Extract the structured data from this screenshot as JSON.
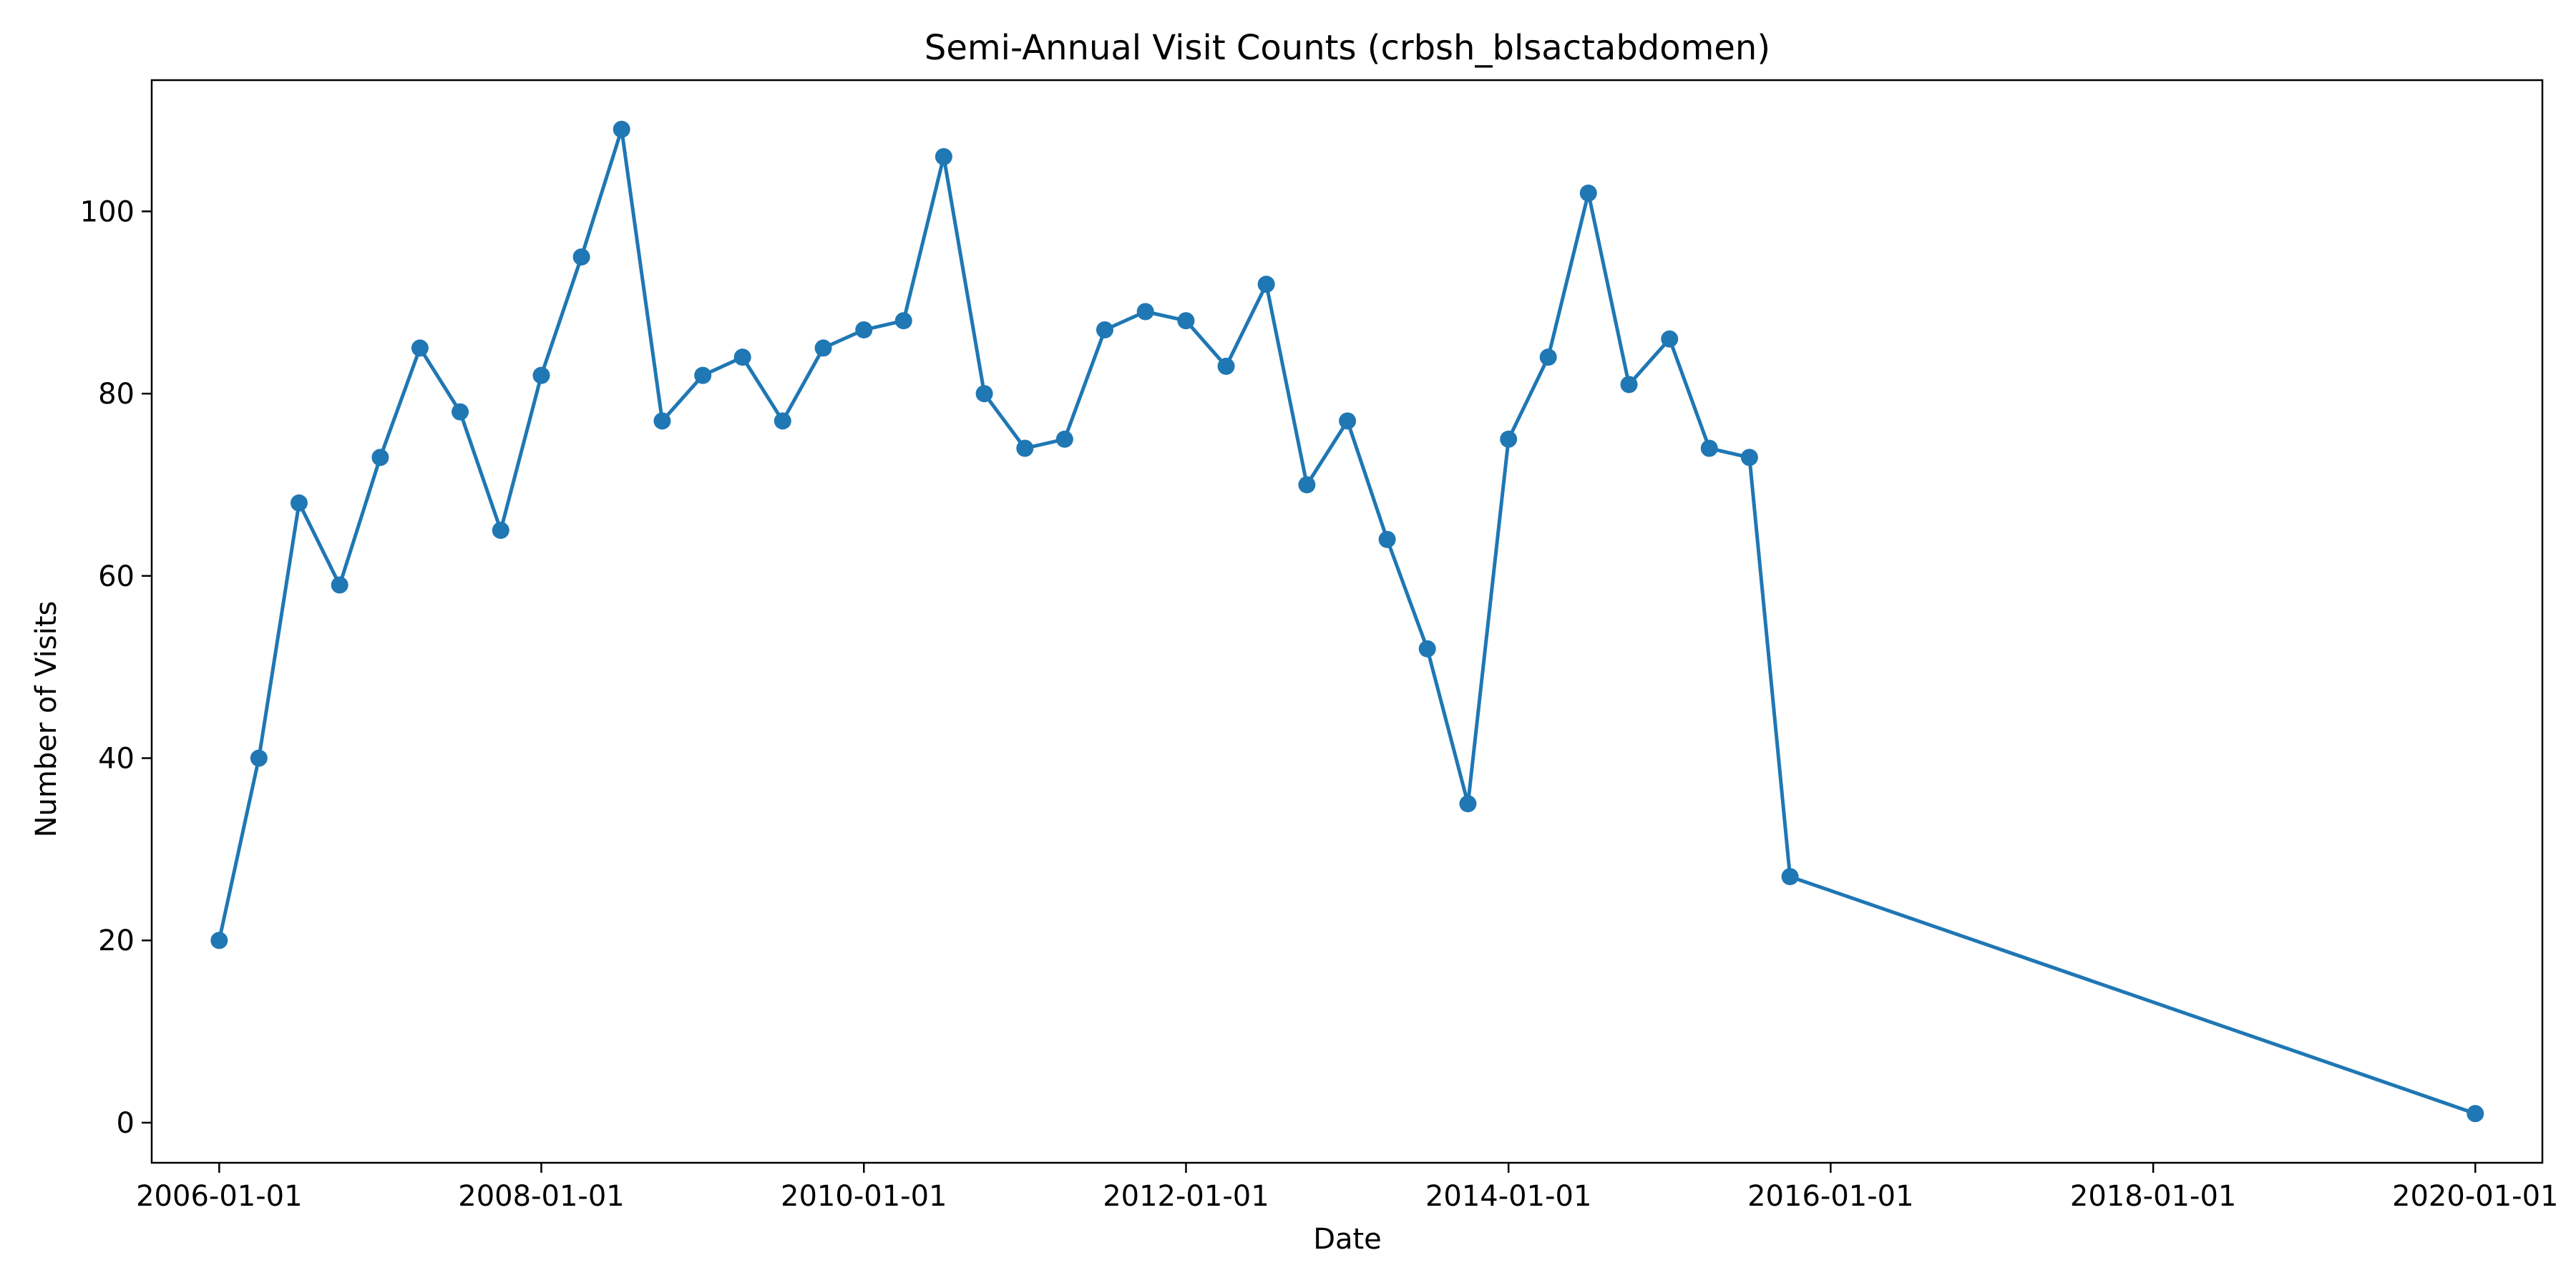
{
  "chart_data": {
    "type": "line",
    "title": "Semi-Annual Visit Counts (crbsh_blsactabdomen)",
    "xlabel": "Date",
    "ylabel": "Number of Visits",
    "grid": false,
    "legend": "none",
    "x_range": [
      "2005-08-01",
      "2020-06-01"
    ],
    "y_range": [
      -4.4,
      114.4
    ],
    "x_ticks": [
      "2006-01-01",
      "2008-01-01",
      "2010-01-01",
      "2012-01-01",
      "2014-01-01",
      "2016-01-01",
      "2018-01-01",
      "2020-01-01"
    ],
    "y_ticks": [
      0,
      20,
      40,
      60,
      80,
      100
    ],
    "series": [
      {
        "color": "#1f77b4",
        "marker": "circle",
        "x": [
          "2006-01-01",
          "2006-04-01",
          "2006-07-01",
          "2006-10-01",
          "2007-01-01",
          "2007-04-01",
          "2007-07-01",
          "2007-10-01",
          "2008-01-01",
          "2008-04-01",
          "2008-07-01",
          "2008-10-01",
          "2009-01-01",
          "2009-04-01",
          "2009-07-01",
          "2009-10-01",
          "2010-01-01",
          "2010-04-01",
          "2010-07-01",
          "2010-10-01",
          "2011-01-01",
          "2011-04-01",
          "2011-07-01",
          "2011-10-01",
          "2012-01-01",
          "2012-04-01",
          "2012-07-01",
          "2012-10-01",
          "2013-01-01",
          "2013-04-01",
          "2013-07-01",
          "2013-10-01",
          "2014-01-01",
          "2014-04-01",
          "2014-07-01",
          "2014-10-01",
          "2015-01-01",
          "2015-04-01",
          "2015-07-01",
          "2015-10-01",
          "2020-01-01"
        ],
        "values": [
          20,
          40,
          68,
          59,
          73,
          85,
          78,
          65,
          82,
          95,
          109,
          77,
          82,
          84,
          77,
          85,
          87,
          88,
          106,
          80,
          74,
          75,
          87,
          89,
          88,
          83,
          92,
          70,
          77,
          64,
          52,
          35,
          75,
          84,
          102,
          81,
          86,
          74,
          73,
          27,
          1
        ]
      }
    ]
  }
}
